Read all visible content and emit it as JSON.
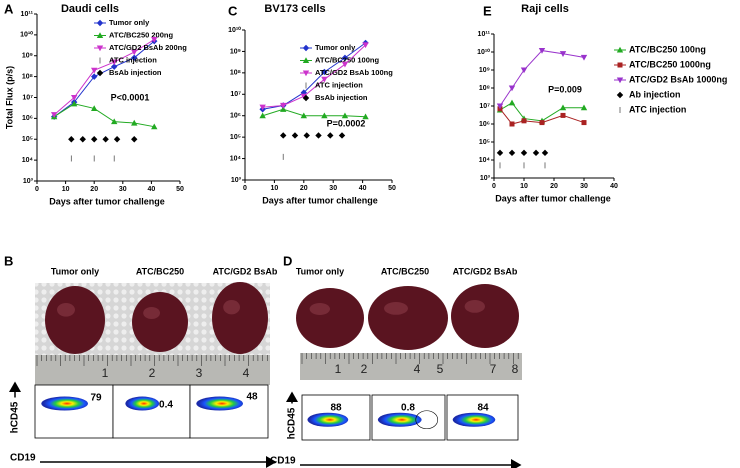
{
  "chart_data": [
    {
      "type": "line",
      "panel": "A",
      "title": "Daudi cells",
      "ylabel": "Total Flux (p/s)",
      "xlabel": "Days after tumor challenge",
      "log_y": true,
      "xlim": [
        0,
        50
      ],
      "xticks": [
        0,
        10,
        20,
        30,
        40,
        50
      ],
      "ylim": [
        1000,
        100000000000
      ],
      "yticks": [
        {
          "value": 1000,
          "label": "10³"
        },
        {
          "value": 10000,
          "label": "10⁴"
        },
        {
          "value": 100000,
          "label": "10⁵"
        },
        {
          "value": 1000000,
          "label": "10⁶"
        },
        {
          "value": 10000000,
          "label": "10⁷"
        },
        {
          "value": 100000000,
          "label": "10⁸"
        },
        {
          "value": 1000000000,
          "label": "10⁹"
        },
        {
          "value": 10000000000,
          "label": "10¹⁰"
        },
        {
          "value": 100000000000,
          "label": "10¹¹"
        }
      ],
      "annotation": "P<0.0001",
      "series": [
        {
          "name": "Tumor only",
          "color": "#2233cc",
          "marker": "diamond",
          "line": true,
          "x": [
            6,
            13,
            20,
            27,
            34,
            41
          ],
          "values": [
            1200000,
            6000000,
            100000000,
            300000000,
            800000000,
            5000000000
          ]
        },
        {
          "name": "ATC/BC250 200ng",
          "color": "#22aa22",
          "marker": "triangle",
          "line": true,
          "x": [
            6,
            13,
            20,
            27,
            34,
            41
          ],
          "values": [
            1200000,
            5000000,
            3000000,
            700000,
            600000,
            400000
          ]
        },
        {
          "name": "ATC/GD2 BsAb 200ng",
          "color": "#cc33cc",
          "marker": "tri-down",
          "line": true,
          "x": [
            6,
            13,
            20,
            27,
            34,
            41
          ],
          "values": [
            1500000,
            10000000,
            200000000,
            500000000,
            1500000000,
            6000000000
          ]
        },
        {
          "name": "ATC injection",
          "color": "#555555",
          "marker": "dash",
          "line": false,
          "x": [
            12,
            20,
            27
          ],
          "values": [
            12000,
            12000,
            12000
          ]
        },
        {
          "name": "BsAb injection",
          "color": "#000000",
          "marker": "diamond",
          "line": false,
          "x": [
            12,
            16,
            20,
            24,
            28,
            34
          ],
          "values": [
            100000,
            100000,
            100000,
            100000,
            100000,
            100000
          ]
        }
      ]
    },
    {
      "type": "line",
      "panel": "C",
      "title": "BV173 cells",
      "xlabel": "Days after tumor challenge",
      "log_y": true,
      "xlim": [
        0,
        50
      ],
      "xticks": [
        0,
        10,
        20,
        30,
        40,
        50
      ],
      "ylim": [
        1000,
        10000000000
      ],
      "yticks": [
        {
          "value": 1000,
          "label": "10³"
        },
        {
          "value": 10000,
          "label": "10⁴"
        },
        {
          "value": 100000,
          "label": "10⁵"
        },
        {
          "value": 1000000,
          "label": "10⁶"
        },
        {
          "value": 10000000,
          "label": "10⁷"
        },
        {
          "value": 100000000,
          "label": "10⁸"
        },
        {
          "value": 1000000000,
          "label": "10⁹"
        },
        {
          "value": 10000000000,
          "label": "10¹⁰"
        }
      ],
      "annotation": "P=0.0002",
      "series": [
        {
          "name": "Tumor only",
          "color": "#2233cc",
          "marker": "diamond",
          "line": true,
          "x": [
            6,
            13,
            20,
            27,
            34,
            41
          ],
          "values": [
            2000000,
            3000000,
            12000000,
            110000000,
            500000000,
            2500000000
          ]
        },
        {
          "name": "ATC/BC250 100ng",
          "color": "#22aa22",
          "marker": "triangle",
          "line": true,
          "x": [
            6,
            13,
            20,
            27,
            34,
            41
          ],
          "values": [
            1000000,
            2000000,
            1000000,
            1000000,
            1000000,
            900000
          ]
        },
        {
          "name": "ATC/GD2 BsAb 100ng",
          "color": "#cc33cc",
          "marker": "tri-down",
          "line": true,
          "x": [
            6,
            13,
            20,
            27,
            34,
            41
          ],
          "values": [
            2500000,
            3000000,
            8000000,
            50000000,
            250000000,
            2000000000
          ]
        },
        {
          "name": "ATC injection",
          "color": "#555555",
          "marker": "dash",
          "line": false,
          "x": [
            13
          ],
          "values": [
            12000
          ]
        },
        {
          "name": "BsAb injection",
          "color": "#000000",
          "marker": "diamond",
          "line": false,
          "x": [
            13,
            17,
            21,
            25,
            29,
            33
          ],
          "values": [
            120000,
            120000,
            120000,
            120000,
            120000,
            120000
          ]
        }
      ]
    },
    {
      "type": "line",
      "panel": "E",
      "title": "Raji cells",
      "xlabel": "Days after tumor challenge",
      "log_y": true,
      "xlim": [
        0,
        40
      ],
      "xticks": [
        0,
        10,
        20,
        30,
        40
      ],
      "ylim": [
        1000,
        100000000000
      ],
      "yticks": [
        {
          "value": 1000,
          "label": "10³"
        },
        {
          "value": 10000,
          "label": "10⁴"
        },
        {
          "value": 100000,
          "label": "10⁵"
        },
        {
          "value": 1000000,
          "label": "10⁶"
        },
        {
          "value": 10000000,
          "label": "10⁷"
        },
        {
          "value": 100000000,
          "label": "10⁸"
        },
        {
          "value": 1000000000,
          "label": "10⁹"
        },
        {
          "value": 10000000000,
          "label": "10¹⁰"
        },
        {
          "value": 100000000000,
          "label": "10¹¹"
        }
      ],
      "annotation": "P=0.009",
      "series": [
        {
          "name": "ATC/BC250 100ng",
          "color": "#22aa22",
          "marker": "triangle",
          "line": true,
          "x": [
            2,
            6,
            10,
            16,
            23,
            30
          ],
          "values": [
            6000000,
            15000000,
            2000000,
            1500000,
            8000000,
            8000000
          ]
        },
        {
          "name": "ATC/BC250 1000ng",
          "color": "#aa2222",
          "marker": "square",
          "line": true,
          "x": [
            2,
            6,
            10,
            16,
            23,
            30
          ],
          "values": [
            7000000,
            1000000,
            1500000,
            1200000,
            3000000,
            1200000
          ]
        },
        {
          "name": "ATC/GD2 BsAb 1000ng",
          "color": "#9933cc",
          "marker": "tri-down",
          "line": true,
          "x": [
            2,
            6,
            10,
            16,
            23,
            30
          ],
          "values": [
            10000000,
            100000000,
            1000000000,
            12000000000,
            8000000000,
            5000000000
          ]
        },
        {
          "name": "Ab injection",
          "color": "#000000",
          "marker": "diamond",
          "line": false,
          "x": [
            2,
            6,
            10,
            14,
            17
          ],
          "values": [
            25000,
            25000,
            25000,
            25000,
            25000
          ]
        },
        {
          "name": "ATC injection",
          "color": "#555555",
          "marker": "dash",
          "line": false,
          "x": [
            2,
            10,
            17
          ],
          "values": [
            5000,
            5000,
            5000
          ]
        }
      ]
    }
  ],
  "photo_panels": [
    {
      "panel": "B",
      "columns": [
        "Tumor only",
        "ATC/BC250",
        "ATC/GD2 BsAb"
      ],
      "ruler": [
        "1",
        "2",
        "3",
        "4"
      ],
      "flow": [
        79,
        0.4,
        48
      ],
      "y_axis": "hCD45",
      "x_axis": "CD19"
    },
    {
      "panel": "D",
      "columns": [
        "Tumor only",
        "ATC/BC250",
        "ATC/GD2 BsAb"
      ],
      "ruler": [
        "1",
        "2",
        "4",
        "5",
        "7",
        "8"
      ],
      "flow": [
        88,
        0.8,
        84
      ],
      "y_axis": "hCD45",
      "x_axis": "CD19"
    }
  ]
}
